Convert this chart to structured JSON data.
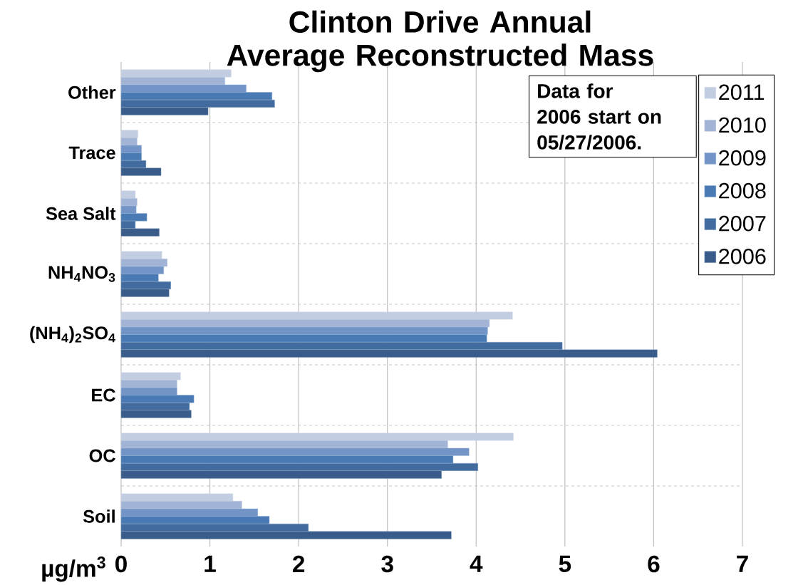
{
  "chart_data": {
    "type": "bar",
    "orientation": "horizontal",
    "title": "Clinton Drive Annual Average Reconstructed Mass",
    "xlabel": "µg/m$^{3}$",
    "categories": [
      "Other",
      "Trace",
      "Sea Salt",
      "NH$_{4}$NO$_{3}$",
      "(NH$_{4}$)$_{2}$SO$_{4}$",
      "EC",
      "OC",
      "Soil"
    ],
    "series": [
      {
        "name": "2011",
        "color": "#c3cde2",
        "values": [
          1.24,
          0.19,
          0.16,
          0.46,
          4.41,
          0.67,
          4.42,
          1.26
        ]
      },
      {
        "name": "2010",
        "color": "#a2b4d5",
        "values": [
          1.17,
          0.18,
          0.18,
          0.52,
          4.15,
          0.63,
          3.68,
          1.36
        ]
      },
      {
        "name": "2009",
        "color": "#7294c6",
        "values": [
          1.41,
          0.23,
          0.17,
          0.48,
          4.13,
          0.63,
          3.92,
          1.54
        ]
      },
      {
        "name": "2008",
        "color": "#4a7ab4",
        "values": [
          1.7,
          0.23,
          0.29,
          0.42,
          4.12,
          0.82,
          3.74,
          1.67
        ]
      },
      {
        "name": "2007",
        "color": "#426c9f",
        "values": [
          1.73,
          0.28,
          0.16,
          0.56,
          4.97,
          0.77,
          4.02,
          2.11
        ]
      },
      {
        "name": "2006",
        "color": "#395c8a",
        "values": [
          0.98,
          0.45,
          0.43,
          0.54,
          6.04,
          0.79,
          3.61,
          3.72
        ]
      }
    ],
    "xlim": [
      0,
      7
    ],
    "xticks": [
      0,
      1,
      2,
      3,
      4,
      5,
      6,
      7
    ],
    "grid": "x",
    "legend": "right",
    "annotations": [
      "Data for 2006 start on 05/27/2006."
    ]
  }
}
